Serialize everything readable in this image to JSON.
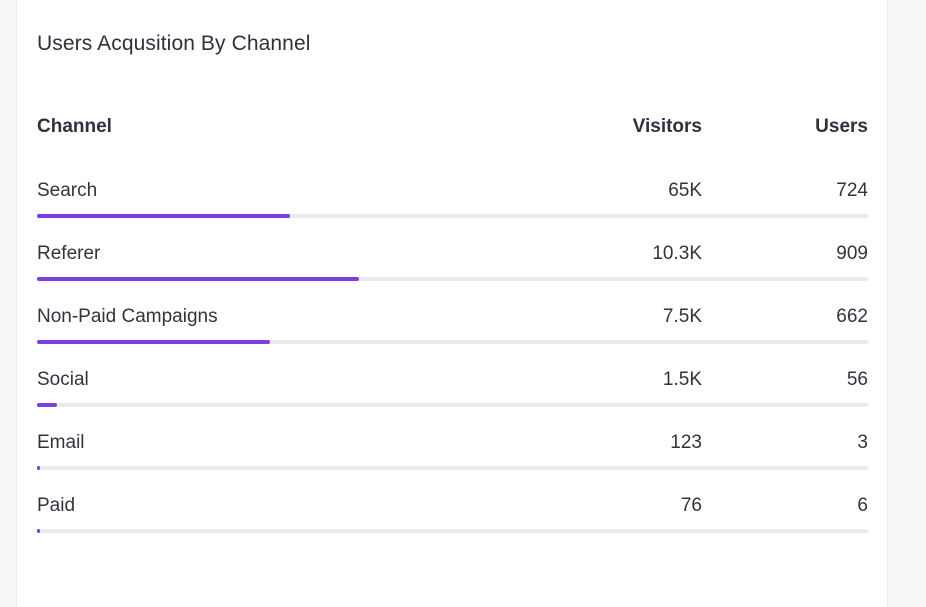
{
  "card": {
    "title": "Users Acqusition By Channel"
  },
  "table": {
    "headers": {
      "channel": "Channel",
      "visitors": "Visitors",
      "users": "Users"
    },
    "accent_color": "#7b3fe0",
    "rows": [
      {
        "channel": "Search",
        "visitors": "65K",
        "users": "724",
        "progress": 0.305
      },
      {
        "channel": "Referer",
        "visitors": "10.3K",
        "users": "909",
        "progress": 0.388
      },
      {
        "channel": "Non-Paid Campaigns",
        "visitors": "7.5K",
        "users": "662",
        "progress": 0.28
      },
      {
        "channel": "Social",
        "visitors": "1.5K",
        "users": "56",
        "progress": 0.024
      },
      {
        "channel": "Email",
        "visitors": "123",
        "users": "3",
        "progress": 0.002
      },
      {
        "channel": "Paid",
        "visitors": "76",
        "users": "6",
        "progress": 0.003
      }
    ]
  }
}
